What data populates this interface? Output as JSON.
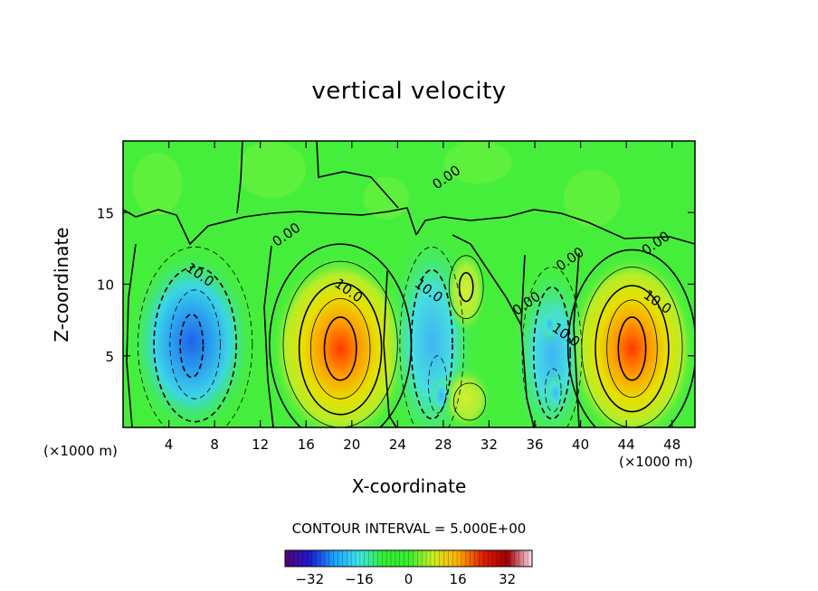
{
  "chart_data": {
    "type": "heatmap",
    "title": "vertical velocity",
    "xlabel": "X-coordinate",
    "ylabel": "Z-coordinate",
    "x_unit_label": "(×1000 m)",
    "xlim": [
      0,
      50
    ],
    "ylim": [
      0,
      20
    ],
    "x_ticks": [
      4,
      8,
      12,
      16,
      20,
      24,
      28,
      32,
      36,
      40,
      44,
      48
    ],
    "y_ticks": [
      5,
      10,
      15
    ],
    "contour_interval_text": "CONTOUR INTERVAL = 5.000E+00",
    "colorbar": {
      "min": -40,
      "max": 40,
      "ticks": [
        -32,
        -16,
        0,
        16,
        32
      ],
      "colors": [
        "#5a0070",
        "#1a1ad0",
        "#1ea0ff",
        "#3ee6e6",
        "#33ee33",
        "#33ee33",
        "#ccee22",
        "#ffb000",
        "#e02000",
        "#a00000",
        "#ffe0f0"
      ]
    },
    "contour_labels": [
      {
        "text": "10.0",
        "x": 6.5,
        "y": 10.4
      },
      {
        "text": "10.0",
        "x": 19.5,
        "y": 9.3
      },
      {
        "text": "10.0",
        "x": 26.5,
        "y": 9.3
      },
      {
        "text": "10.0",
        "x": 38.5,
        "y": 6.2
      },
      {
        "text": "10.0",
        "x": 46.5,
        "y": 8.5
      },
      {
        "text": "0.00",
        "x": 14.5,
        "y": 13.2
      },
      {
        "text": "0.00",
        "x": 28.5,
        "y": 17.2
      },
      {
        "text": "0.00",
        "x": 35.5,
        "y": 8.4
      },
      {
        "text": "0.00",
        "x": 39.3,
        "y": 11.5
      },
      {
        "text": "0.00",
        "x": 46.8,
        "y": 12.6
      }
    ],
    "cells": [
      {
        "x": 6,
        "y": 6,
        "value": -30
      },
      {
        "x": 19,
        "y": 5.5,
        "value": 38
      },
      {
        "x": 27,
        "y": 6,
        "value": -22
      },
      {
        "x": 37.5,
        "y": 5,
        "value": -20
      },
      {
        "x": 44.5,
        "y": 5.5,
        "value": 38
      },
      {
        "x": 30,
        "y": 9.5,
        "value": 12
      },
      {
        "x": 30,
        "y": 2,
        "value": 10
      }
    ]
  }
}
